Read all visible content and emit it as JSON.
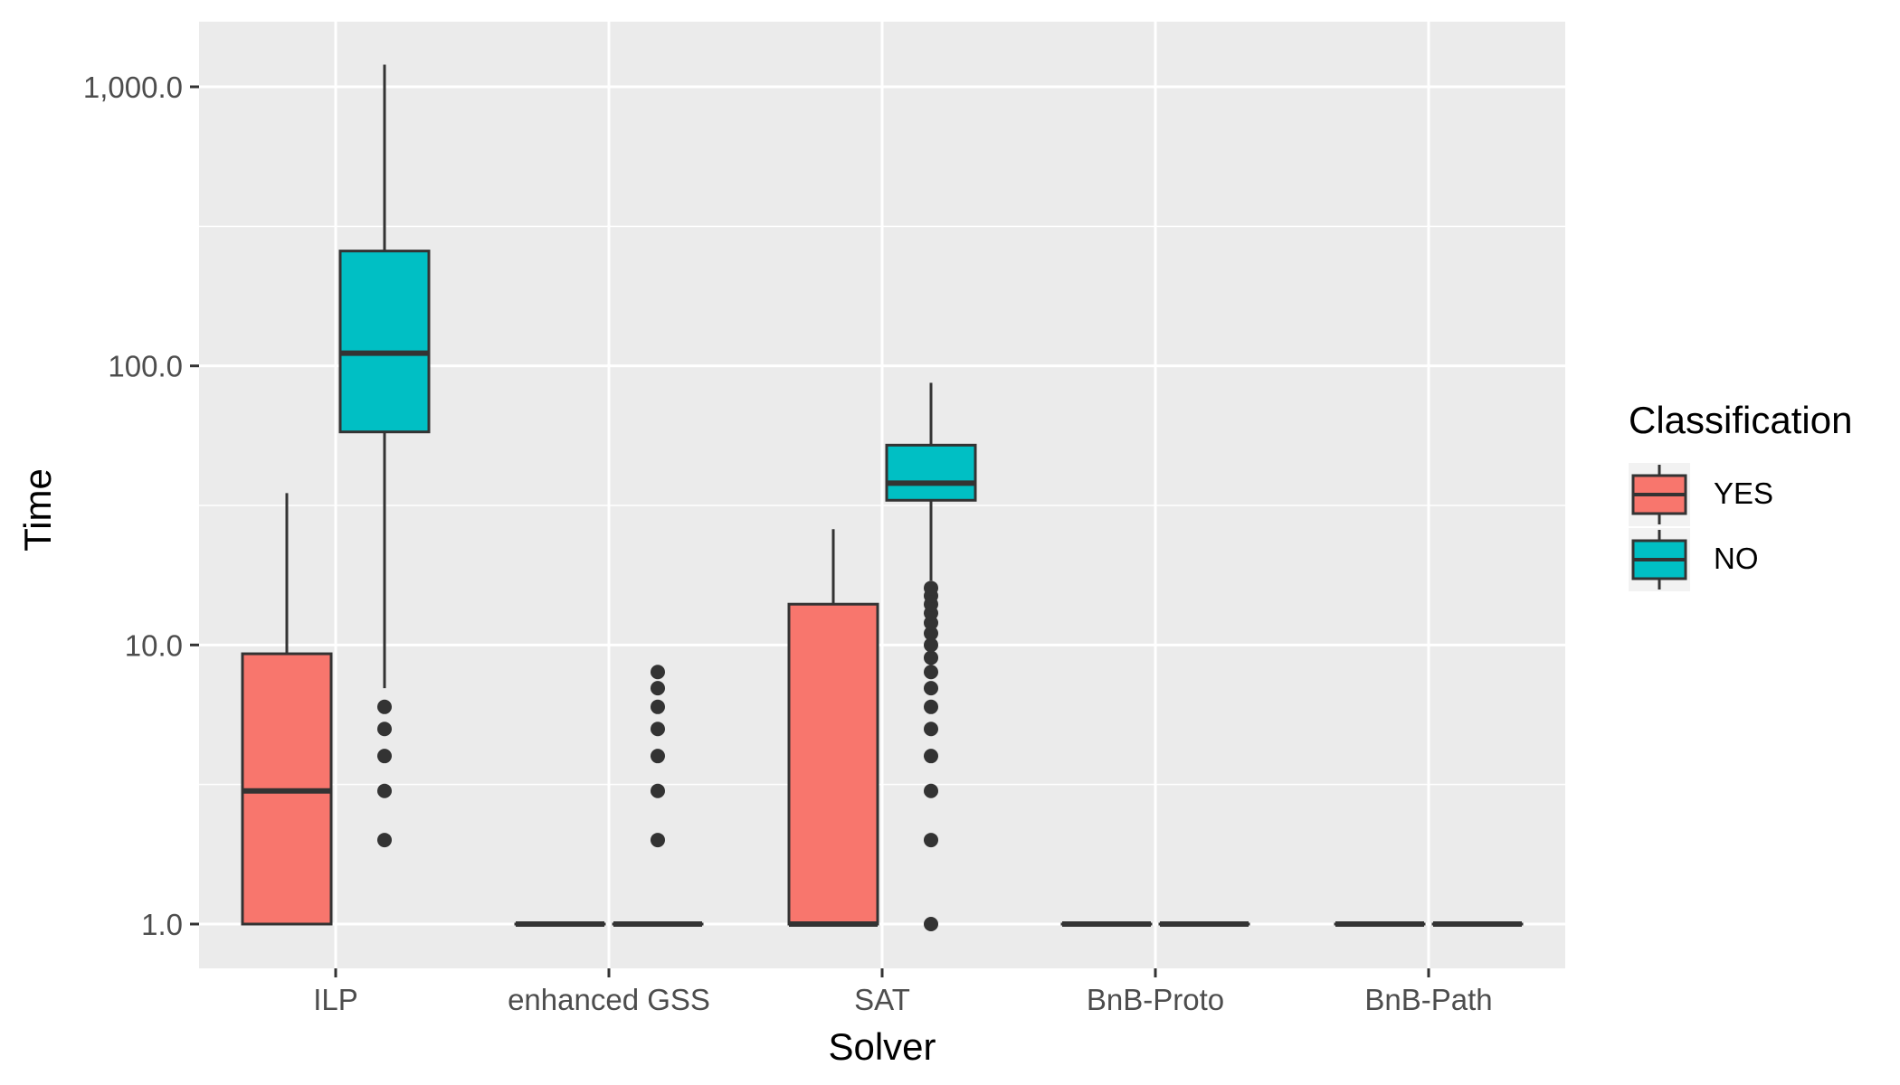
{
  "chart_data": {
    "type": "box",
    "xlabel": "Solver",
    "ylabel": "Time",
    "yscale": "log10",
    "ylim": [
      0.72,
      1650
    ],
    "yticks": [
      1,
      10,
      100,
      1000
    ],
    "ytick_labels": [
      "1.0",
      "10.0",
      "100.0",
      "1,000.0"
    ],
    "categories": [
      "ILP",
      "enhanced GSS",
      "SAT",
      "BnB-Proto",
      "BnB-Path"
    ],
    "legend": {
      "title": "Classification",
      "position": "right",
      "entries": [
        {
          "label": "YES",
          "color": "#F8766D"
        },
        {
          "label": "NO",
          "color": "#00BFC4"
        }
      ]
    },
    "series": [
      {
        "name": "YES",
        "color": "#F8766D",
        "boxes": [
          {
            "min": 1,
            "q1": 1,
            "median": 3,
            "q3": 9.3,
            "max": 35,
            "outliers": []
          },
          {
            "min": 1,
            "q1": 1,
            "median": 1,
            "q3": 1,
            "max": 1,
            "outliers": []
          },
          {
            "min": 1,
            "q1": 1,
            "median": 1,
            "q3": 14,
            "max": 26,
            "outliers": []
          },
          {
            "min": 1,
            "q1": 1,
            "median": 1,
            "q3": 1,
            "max": 1,
            "outliers": []
          },
          {
            "min": 1,
            "q1": 1,
            "median": 1,
            "q3": 1,
            "max": 1,
            "outliers": []
          }
        ]
      },
      {
        "name": "NO",
        "color": "#00BFC4",
        "boxes": [
          {
            "min": 7,
            "q1": 58,
            "median": 111,
            "q3": 258,
            "max": 1200,
            "outliers": [
              2,
              3,
              4,
              5,
              6
            ]
          },
          {
            "min": 1,
            "q1": 1,
            "median": 1,
            "q3": 1,
            "max": 1,
            "outliers": [
              2,
              3,
              4,
              5,
              6,
              7,
              8
            ]
          },
          {
            "min": 17,
            "q1": 33,
            "median": 38,
            "q3": 52,
            "max": 87,
            "outliers": [
              1,
              2,
              3,
              4,
              5,
              6,
              7,
              8,
              9,
              10,
              11,
              12,
              13,
              14,
              15,
              16
            ]
          },
          {
            "min": 1,
            "q1": 1,
            "median": 1,
            "q3": 1,
            "max": 1,
            "outliers": []
          },
          {
            "min": 1,
            "q1": 1,
            "median": 1,
            "q3": 1,
            "max": 1,
            "outliers": []
          }
        ]
      }
    ]
  },
  "colors": {
    "panel_bg": "#EBEBEB",
    "grid": "#FFFFFF",
    "box_stroke": "#333333",
    "tick_text": "#4D4D4D",
    "legend_key_bg": "#F2F2F2"
  }
}
